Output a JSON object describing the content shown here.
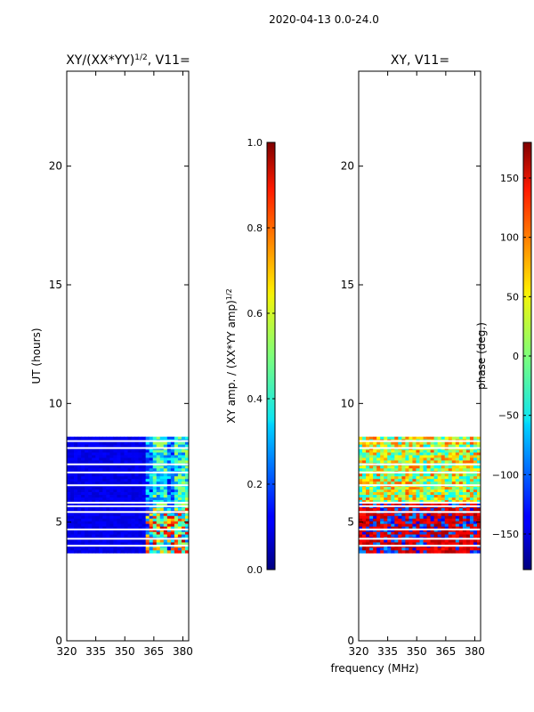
{
  "suptitle": "2020-04-13 0.0-24.0",
  "colors": {
    "axis": "#000000",
    "background": "#ffffff",
    "gap": "#ffffff"
  },
  "chart_data": [
    {
      "type": "heatmap",
      "title_text": "XY/(XX*YY)",
      "title_exp": "1/2",
      "title_suffix": ", V11=",
      "xlabel": "",
      "ylabel": "UT (hours)",
      "xlim": [
        320,
        383
      ],
      "ylim": [
        0,
        24
      ],
      "xticks": [
        "320",
        "335",
        "350",
        "365",
        "380"
      ],
      "yticks": [
        "0",
        "5",
        "10",
        "15",
        "20"
      ],
      "data_rows_ut": [
        3.7,
        8.6
      ],
      "colormap": "jet",
      "colorbar": {
        "label": "XY amp. / (XX*YY amp)",
        "label_exp": "1/2",
        "range": [
          0.0,
          1.0
        ],
        "ticks": [
          "0.0",
          "0.2",
          "0.4",
          "0.6",
          "0.8",
          "1.0"
        ]
      }
    },
    {
      "type": "heatmap",
      "title_text": "XY, V11=",
      "xlabel": "frequency (MHz)",
      "ylabel": "",
      "xlim": [
        320,
        383
      ],
      "ylim": [
        0,
        24
      ],
      "xticks": [
        "320",
        "335",
        "350",
        "365",
        "380"
      ],
      "yticks": [
        "0",
        "5",
        "10",
        "15",
        "20"
      ],
      "data_rows_ut": [
        3.7,
        8.6
      ],
      "colormap": "jet",
      "colorbar": {
        "label": "phase (deg.)",
        "range": [
          -180,
          180
        ],
        "ticks": [
          "−150",
          "−100",
          "−50",
          "0",
          "50",
          "100",
          "150"
        ]
      }
    }
  ]
}
